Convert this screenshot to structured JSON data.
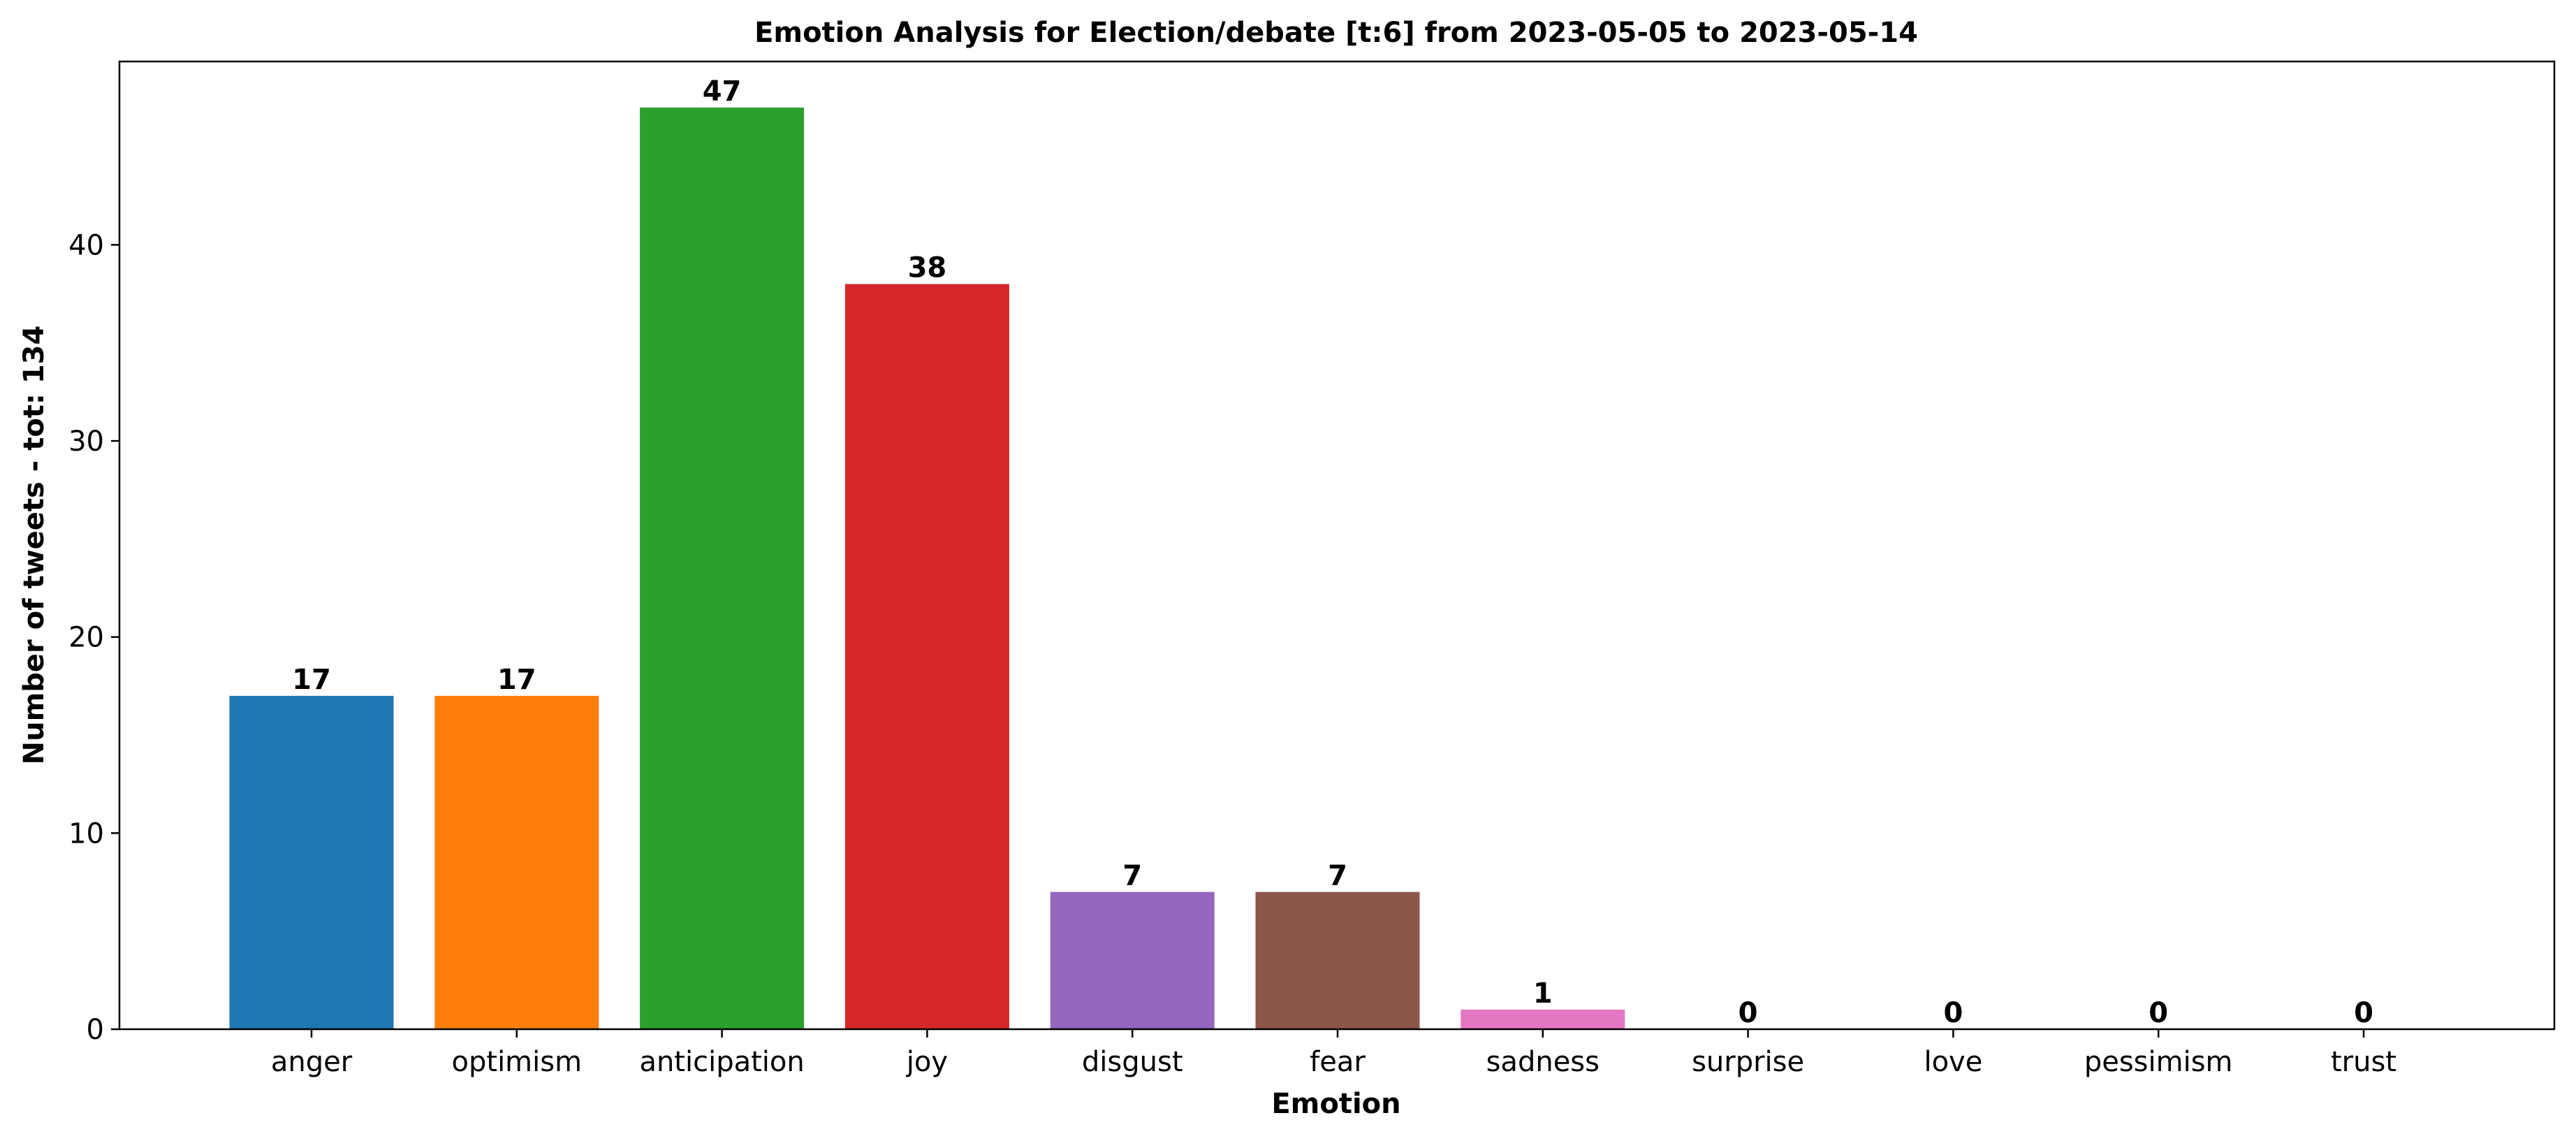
{
  "chart_data": {
    "type": "bar",
    "title": "Emotion Analysis for Election/debate [t:6] from 2023-05-05 to 2023-05-14",
    "xlabel": "Emotion",
    "ylabel": "Number of tweets - tot: 134",
    "categories": [
      "anger",
      "optimism",
      "anticipation",
      "joy",
      "disgust",
      "fear",
      "sadness",
      "surprise",
      "love",
      "pessimism",
      "trust"
    ],
    "values": [
      17,
      17,
      47,
      38,
      7,
      7,
      1,
      0,
      0,
      0,
      0
    ],
    "data_labels": [
      "17",
      "17",
      "47",
      "38",
      "7",
      "7",
      "1",
      "0",
      "0",
      "0",
      "0"
    ],
    "colors": [
      "#1f77b4",
      "#ff7f0e",
      "#2ca02c",
      "#d62728",
      "#9467bd",
      "#8c564b",
      "#e377c2",
      "#7f7f7f",
      "#bcbd22",
      "#17becf",
      "#1f77b4"
    ],
    "yticks": [
      0,
      10,
      20,
      30,
      40
    ],
    "ytick_labels": [
      "0",
      "10",
      "20",
      "30",
      "40"
    ],
    "ylim": [
      0,
      49.35
    ],
    "grid": false,
    "legend": "none"
  }
}
